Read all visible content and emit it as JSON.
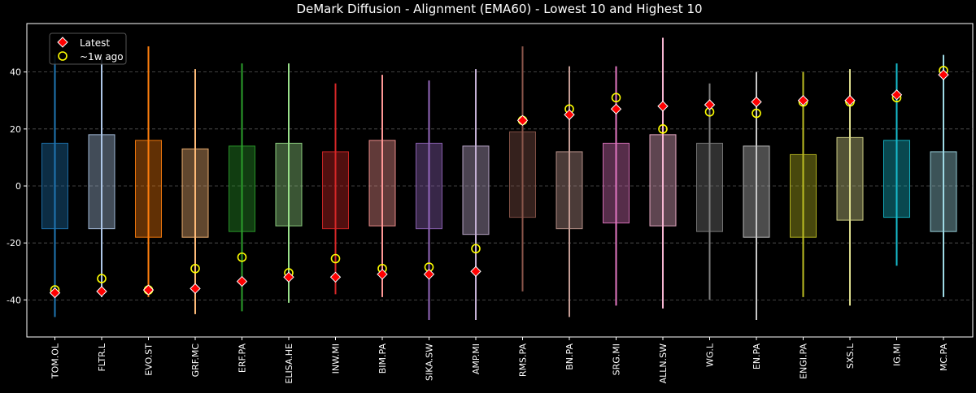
{
  "chart_data": {
    "type": "box-range",
    "title": "DeMark Diffusion - Alignment (EMA60) - Lowest 10 and Highest 10",
    "xlabel": "",
    "ylabel": "",
    "ylim": [
      -53,
      57
    ],
    "yticks": [
      -40,
      -20,
      0,
      20,
      40
    ],
    "grid": "horizontal-dashed",
    "legend_position": "top-left",
    "legend": [
      {
        "label": "Latest",
        "marker": "diamond",
        "color": "#ff0000",
        "edge": "#ffffff"
      },
      {
        "label": "~1w ago",
        "marker": "circle",
        "color": "none",
        "edge": "#ffff00"
      }
    ],
    "categories": [
      "TOM.OL",
      "FLTR.L",
      "EVO.ST",
      "GRF.MC",
      "ERF.PA",
      "ELISA.HE",
      "INW.MI",
      "BIM.PA",
      "SIKA.SW",
      "AMP.MI",
      "RMS.PA",
      "BN.PA",
      "SRG.MI",
      "ALLN.SW",
      "WG.L",
      "EN.PA",
      "ENGI.PA",
      "SXS.L",
      "IG.MI",
      "MC.PA"
    ],
    "colors": [
      "#1f77b4",
      "#aec7e8",
      "#ff7f0e",
      "#ffbb78",
      "#2ca02c",
      "#98df8a",
      "#d62728",
      "#ff9896",
      "#9467bd",
      "#c5b0d5",
      "#8c564b",
      "#c49c94",
      "#e377c2",
      "#f7b6d2",
      "#7f7f7f",
      "#c7c7c7",
      "#bcbd22",
      "#dbdb8d",
      "#17becf",
      "#9edae5"
    ],
    "series": [
      {
        "name": "range_low",
        "values": [
          -46,
          -39,
          -39,
          -45,
          -44,
          -41,
          -38,
          -39,
          -47,
          -47,
          -37,
          -46,
          -42,
          -43,
          -40,
          -47,
          -39,
          -42,
          -28,
          -39
        ]
      },
      {
        "name": "range_high",
        "values": [
          46,
          45,
          49,
          41,
          43,
          43,
          36,
          39,
          37,
          41,
          49,
          42,
          42,
          52,
          36,
          40,
          40,
          41,
          43,
          46
        ]
      },
      {
        "name": "box_low",
        "values": [
          -15,
          -15,
          -18,
          -18,
          -16,
          -14,
          -15,
          -14,
          -15,
          -17,
          -11,
          -15,
          -13,
          -14,
          -16,
          -18,
          -18,
          -12,
          -11,
          -16
        ]
      },
      {
        "name": "box_high",
        "values": [
          15,
          18,
          16,
          13,
          14,
          15,
          12,
          16,
          15,
          14,
          19,
          12,
          15,
          18,
          15,
          14,
          11,
          17,
          16,
          12
        ]
      },
      {
        "name": "Latest",
        "values": [
          -37.5,
          -37,
          -36.5,
          -36,
          -33.5,
          -32,
          -32,
          -31,
          -31,
          -30,
          23,
          25,
          27,
          28,
          28.5,
          29.5,
          30,
          30,
          32,
          39
        ]
      },
      {
        "name": "~1w ago",
        "values": [
          -36.5,
          -32.5,
          -36.5,
          -29,
          -25,
          -30.5,
          -25.5,
          -29,
          -28.5,
          -22,
          23,
          27,
          31,
          20,
          26,
          25.5,
          29.5,
          29.5,
          31,
          40.5
        ]
      }
    ]
  }
}
